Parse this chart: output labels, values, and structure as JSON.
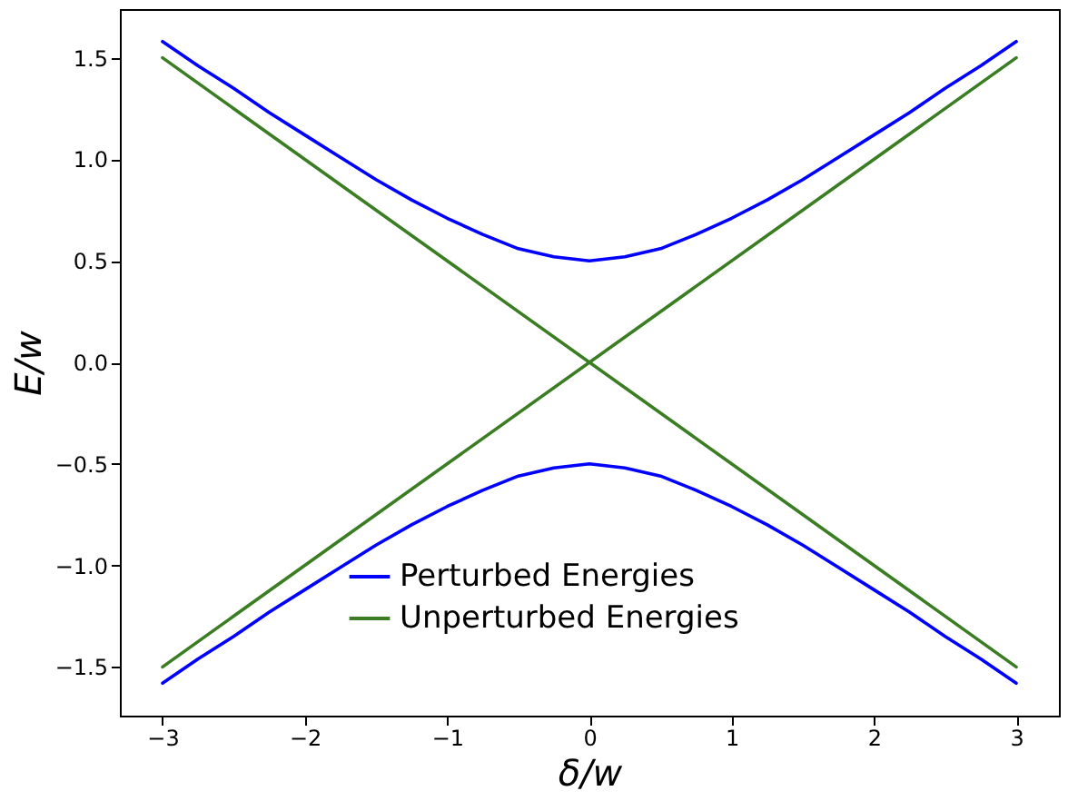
{
  "chart_data": {
    "type": "line",
    "xlabel": "δ/w",
    "ylabel": "E/w",
    "xlim": [
      -3.3,
      3.3
    ],
    "xticks": [
      {
        "value": -3,
        "label": "−3"
      },
      {
        "value": -2,
        "label": "−2"
      },
      {
        "value": -1,
        "label": "−1"
      },
      0,
      1,
      2,
      3
    ],
    "ylim": [
      -1.74,
      1.74
    ],
    "yticks": [
      {
        "value": -1.5,
        "label": "−1.5"
      },
      {
        "value": -1.0,
        "label": "−1.0"
      },
      {
        "value": -0.5,
        "label": "−0.5"
      },
      {
        "value": 0,
        "label": "0.0"
      },
      {
        "value": 0.5,
        "label": "0.5"
      },
      {
        "value": 1.0,
        "label": "1.0"
      },
      {
        "value": 1.5,
        "label": "1.5"
      }
    ],
    "grid": false,
    "legend": "bottom",
    "marker": "none",
    "line_style": "solid",
    "series": [
      {
        "name": "Perturbed Energies",
        "color": "#0000ff",
        "x": [
          -3,
          -2.75,
          -2.5,
          -2.25,
          -2,
          -1.75,
          -1.5,
          -1.25,
          -1,
          -0.75,
          -0.5,
          -0.25,
          0,
          0.25,
          0.5,
          0.75,
          1,
          1.25,
          1.5,
          1.75,
          2,
          2.25,
          2.5,
          2.75,
          3
        ],
        "values": [
          1.58,
          1.46,
          1.35,
          1.23,
          1.12,
          1.01,
          0.9,
          0.8,
          0.71,
          0.63,
          0.56,
          0.52,
          0.5,
          0.52,
          0.56,
          0.63,
          0.71,
          0.8,
          0.9,
          1.01,
          1.12,
          1.23,
          1.35,
          1.46,
          1.58
        ]
      },
      {
        "color": "#0000ff",
        "x": [
          -3,
          -2.75,
          -2.5,
          -2.25,
          -2,
          -1.75,
          -1.5,
          -1.25,
          -1,
          -0.75,
          -0.5,
          -0.25,
          0,
          0.25,
          0.5,
          0.75,
          1,
          1.25,
          1.5,
          1.75,
          2,
          2.25,
          2.5,
          2.75,
          3
        ],
        "values": [
          -1.58,
          -1.46,
          -1.35,
          -1.23,
          -1.12,
          -1.01,
          -0.9,
          -0.8,
          -0.71,
          -0.63,
          -0.56,
          -0.52,
          -0.5,
          -0.52,
          -0.56,
          -0.63,
          -0.71,
          -0.8,
          -0.9,
          -1.01,
          -1.12,
          -1.23,
          -1.35,
          -1.46,
          -1.58
        ]
      },
      {
        "name": "Unperturbed Energies",
        "color": "#3a7d22",
        "x": [
          -3,
          3
        ],
        "values": [
          1.5,
          -1.5
        ]
      },
      {
        "color": "#3a7d22",
        "x": [
          -3,
          3
        ],
        "values": [
          -1.5,
          1.5
        ]
      }
    ]
  }
}
